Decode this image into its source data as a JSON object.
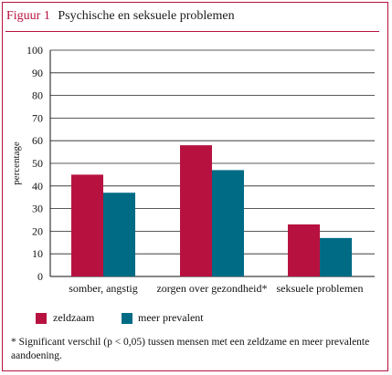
{
  "figure": {
    "label": "Figuur 1",
    "title": "Psychische en seksuele problemen"
  },
  "colors": {
    "accent": "#b7123f",
    "series1": "#b7123f",
    "series2": "#006b84"
  },
  "chart_data": {
    "type": "bar",
    "categories": [
      "somber, angstig",
      "zorgen over gezondheid*",
      "seksuele problemen"
    ],
    "series": [
      {
        "name": "zeldzaam",
        "values": [
          45,
          58,
          23
        ]
      },
      {
        "name": "meer prevalent",
        "values": [
          37,
          47,
          17
        ]
      }
    ],
    "ylabel": "percentage",
    "xlabel": "",
    "ylim": [
      0,
      100
    ],
    "yticks": [
      0,
      10,
      20,
      30,
      40,
      50,
      60,
      70,
      80,
      90,
      100
    ],
    "grid": true,
    "legend": "bottom"
  },
  "footnote": "* Significant verschil (p < 0,05) tussen mensen met een zeldzame en meer prevalente aandoening."
}
